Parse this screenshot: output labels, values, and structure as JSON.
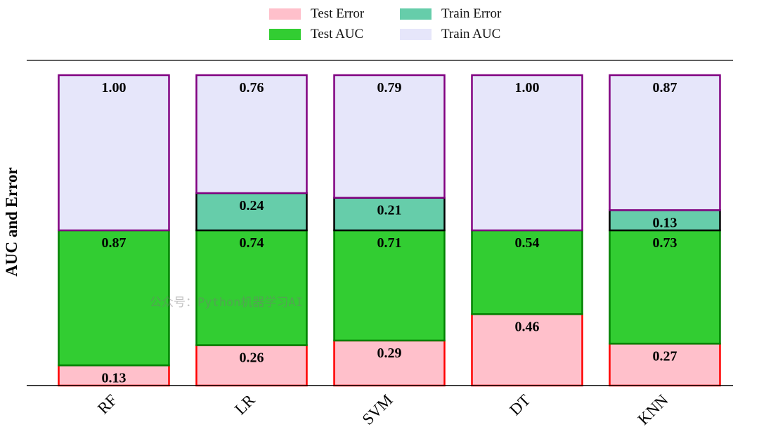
{
  "chart_data": {
    "type": "bar",
    "stacked": true,
    "categories": [
      "RF",
      "LR",
      "SVM",
      "DT",
      "KNN"
    ],
    "series": [
      {
        "name": "Test Error",
        "values": [
          0.13,
          0.26,
          0.29,
          0.46,
          0.27
        ],
        "color": "#ffc0cb",
        "edge": "#ff0000"
      },
      {
        "name": "Test AUC",
        "values": [
          0.87,
          0.74,
          0.71,
          0.54,
          0.73
        ],
        "color": "#32cd32",
        "edge": "#008000"
      },
      {
        "name": "Train Error",
        "values": [
          0,
          0.24,
          0.21,
          0,
          0.13
        ],
        "color": "#66cdaa",
        "edge": "#000000"
      },
      {
        "name": "Train AUC",
        "values": [
          1.0,
          0.76,
          0.79,
          1.0,
          0.87
        ],
        "color": "#e6e6fa",
        "edge": "#800080"
      }
    ],
    "labels": {
      "Test Error": [
        "0.13",
        "0.26",
        "0.29",
        "0.46",
        "0.27"
      ],
      "Test AUC": [
        "0.87",
        "0.74",
        "0.71",
        "0.54",
        "0.73"
      ],
      "Train Error": [
        "",
        "0.24",
        "0.21",
        "",
        "0.13"
      ],
      "Train AUC": [
        "1.00",
        "0.76",
        "0.79",
        "1.00",
        "0.87"
      ]
    },
    "ylabel": "AUC and Error",
    "xlabel": "",
    "ylim": [
      0,
      2
    ],
    "legend": "top-center"
  },
  "legend_items": [
    "Test Error",
    "Train Error",
    "Test AUC",
    "Train AUC"
  ],
  "watermark": "公众号：Python机器学习AI"
}
